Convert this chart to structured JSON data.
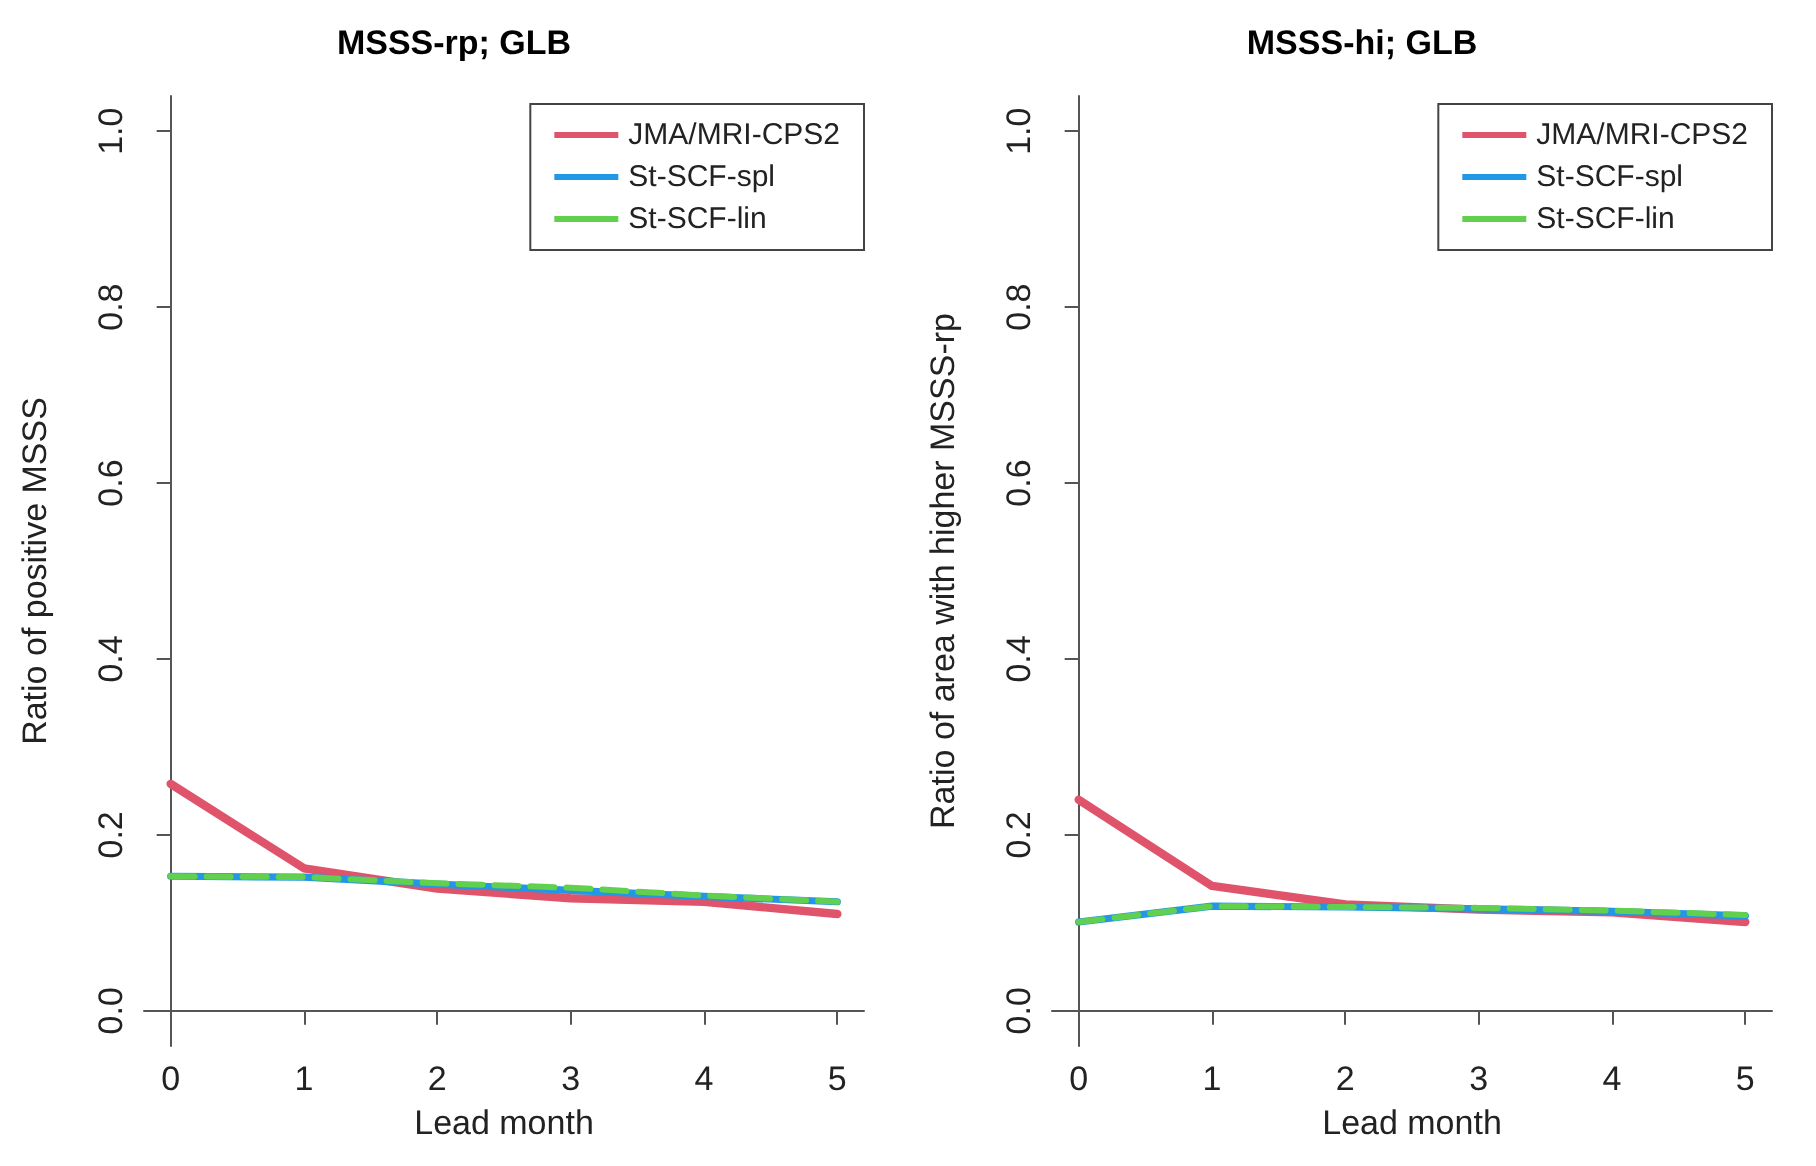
{
  "chart_data": [
    {
      "type": "line",
      "title": "MSSS-rp; GLB",
      "xlabel": "Lead month",
      "ylabel": "Ratio of positive MSSS",
      "x": [
        0,
        1,
        2,
        3,
        4,
        5
      ],
      "series": [
        {
          "name": "JMA/MRI-CPS2",
          "color": "#df536b",
          "values": [
            0.258,
            0.162,
            0.139,
            0.128,
            0.124,
            0.11
          ]
        },
        {
          "name": "St-SCF-spl",
          "color": "#2297e6",
          "values": [
            0.153,
            0.152,
            0.144,
            0.137,
            0.13,
            0.124
          ]
        },
        {
          "name": "St-SCF-lin",
          "color": "#61d04f",
          "line_style": "dashed",
          "values": [
            0.153,
            0.152,
            0.145,
            0.14,
            0.131,
            0.124
          ]
        }
      ],
      "xlim": [
        -0.2,
        5.2
      ],
      "xticks": [
        0,
        1,
        2,
        3,
        4,
        5
      ],
      "ylim": [
        -0.04,
        1.04
      ],
      "yticks": [
        {
          "value": 0,
          "label": "0.0"
        },
        {
          "value": 0.2,
          "label": "0.2"
        },
        {
          "value": 0.4,
          "label": "0.4"
        },
        {
          "value": 0.6,
          "label": "0.6"
        },
        {
          "value": 0.8,
          "label": "0.8"
        },
        {
          "value": 1,
          "label": "1.0"
        }
      ],
      "legend": "top right",
      "grid": false,
      "marker": "none",
      "line_style": "solid"
    },
    {
      "type": "line",
      "title": "MSSS-hi; GLB",
      "xlabel": "Lead month",
      "ylabel": "Ratio of area with higher MSSS-rp",
      "x": [
        0,
        1,
        2,
        3,
        4,
        5
      ],
      "series": [
        {
          "name": "JMA/MRI-CPS2",
          "color": "#df536b",
          "values": [
            0.24,
            0.142,
            0.121,
            0.115,
            0.112,
            0.101
          ]
        },
        {
          "name": "St-SCF-spl",
          "color": "#2297e6",
          "values": [
            0.101,
            0.119,
            0.118,
            0.116,
            0.113,
            0.108
          ]
        },
        {
          "name": "St-SCF-lin",
          "color": "#61d04f",
          "line_style": "dashed",
          "values": [
            0.101,
            0.119,
            0.118,
            0.117,
            0.114,
            0.109
          ]
        }
      ],
      "xlim": [
        -0.2,
        5.2
      ],
      "xticks": [
        0,
        1,
        2,
        3,
        4,
        5
      ],
      "ylim": [
        -0.04,
        1.04
      ],
      "yticks": [
        {
          "value": 0,
          "label": "0.0"
        },
        {
          "value": 0.2,
          "label": "0.2"
        },
        {
          "value": 0.4,
          "label": "0.4"
        },
        {
          "value": 0.6,
          "label": "0.6"
        },
        {
          "value": 0.8,
          "label": "0.8"
        },
        {
          "value": 1,
          "label": "1.0"
        }
      ],
      "legend": "top right",
      "grid": false,
      "marker": "none",
      "line_style": "solid"
    }
  ]
}
